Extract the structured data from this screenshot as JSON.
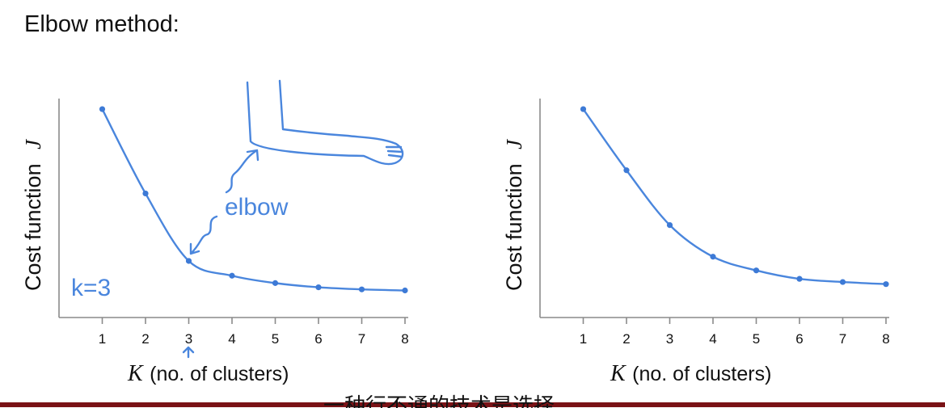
{
  "page": {
    "title": "Elbow method:",
    "subtitle": "一种行不通的技术是选择"
  },
  "annotations": {
    "elbow": "elbow",
    "k_equals": "k=3"
  },
  "colors": {
    "curve": "#4a86dd",
    "axis": "#8a8a8a",
    "subtitle_bar": "#7a1216"
  },
  "chart_data": [
    {
      "type": "line",
      "ylabel_text": "Cost function",
      "ylabel_symbol": "J",
      "xlabel_symbol": "K",
      "xlabel_text": "(no. of clusters)",
      "x": [
        1,
        2,
        3,
        4,
        5,
        6,
        7,
        8
      ],
      "x_tick_labels": [
        "1",
        "2",
        "3",
        "4",
        "5",
        "6",
        "7",
        "8"
      ],
      "values": [
        9.5,
        5.5,
        2.3,
        1.6,
        1.25,
        1.05,
        0.95,
        0.9
      ],
      "xlim": [
        0,
        8
      ],
      "ylim": [
        0,
        10
      ],
      "grid": false
    },
    {
      "type": "line",
      "ylabel_text": "Cost function",
      "ylabel_symbol": "J",
      "xlabel_symbol": "K",
      "xlabel_text": "(no. of clusters)",
      "x": [
        1,
        2,
        3,
        4,
        5,
        6,
        7,
        8
      ],
      "x_tick_labels": [
        "1",
        "2",
        "3",
        "4",
        "5",
        "6",
        "7",
        "8"
      ],
      "values": [
        9.5,
        6.6,
        4.0,
        2.5,
        1.85,
        1.45,
        1.3,
        1.2
      ],
      "xlim": [
        0,
        8
      ],
      "ylim": [
        0,
        10
      ],
      "grid": false
    }
  ]
}
